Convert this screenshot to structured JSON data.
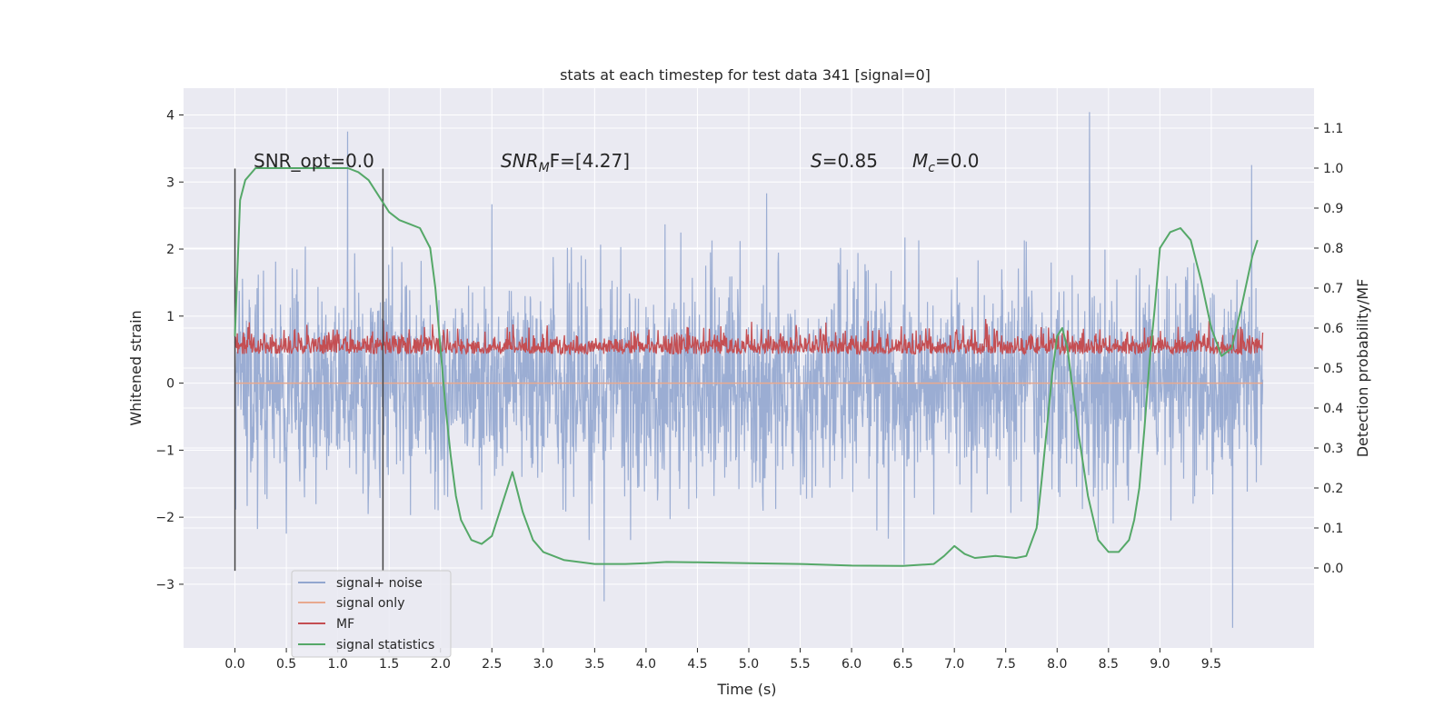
{
  "chart_data": {
    "type": "line",
    "title": "stats at each timestep for test data 341 [signal=0]",
    "xlabel": "Time (s)",
    "ylabel_left": "Whitened strain",
    "ylabel_right": "Detection probability/MF",
    "xlim": [
      -0.5,
      10.5
    ],
    "ylim_left": [
      -3.95,
      4.4
    ],
    "ylim_right": [
      -0.2,
      1.2
    ],
    "xticks": [
      "0.0",
      "0.5",
      "1.0",
      "1.5",
      "2.0",
      "2.5",
      "3.0",
      "3.5",
      "4.0",
      "4.5",
      "5.0",
      "5.5",
      "6.0",
      "6.5",
      "7.0",
      "7.5",
      "8.0",
      "8.5",
      "9.0",
      "9.5"
    ],
    "yticks_left": [
      "−3",
      "−2",
      "−1",
      "0",
      "1",
      "2",
      "3",
      "4"
    ],
    "yticks_right": [
      "0.0",
      "0.1",
      "0.2",
      "0.3",
      "0.4",
      "0.5",
      "0.6",
      "0.7",
      "0.8",
      "0.9",
      "1.0",
      "1.1"
    ],
    "grid": true,
    "legend_position": "lower-left",
    "annotations": {
      "snr_opt": "SNR_opt=0.0",
      "snr_mf_prefix": "SNR",
      "snr_mf_sub": "M",
      "snr_mf_suffix": "F=[4.27]",
      "s_prefix": "S",
      "s_suffix": "=0.85",
      "mc_prefix": "M",
      "mc_sub": "c",
      "mc_suffix": "=0.0"
    },
    "vertical_lines_x": [
      0.0,
      1.44
    ],
    "series": [
      {
        "name": "signal+ noise",
        "color": "#92a6cf",
        "axis": "left",
        "x_range": [
          0.0,
          10.0
        ],
        "approx_std": 0.75
      },
      {
        "name": "signal only",
        "color": "#e8a98f",
        "axis": "left",
        "constant": 0.0
      },
      {
        "name": "MF",
        "color": "#c44e52",
        "axis": "right",
        "x_range": [
          0.0,
          10.0
        ],
        "approx_range": [
          0.5,
          0.63
        ]
      },
      {
        "name": "signal statistics",
        "color": "#55a868",
        "axis": "right",
        "x": [
          0.0,
          0.05,
          0.1,
          0.2,
          0.3,
          0.5,
          0.8,
          1.0,
          1.1,
          1.2,
          1.3,
          1.4,
          1.5,
          1.6,
          1.7,
          1.8,
          1.9,
          1.95,
          2.0,
          2.05,
          2.1,
          2.15,
          2.2,
          2.3,
          2.4,
          2.5,
          2.6,
          2.7,
          2.8,
          2.9,
          3.0,
          3.2,
          3.5,
          3.8,
          4.0,
          4.2,
          4.5,
          5.0,
          5.5,
          6.0,
          6.5,
          6.8,
          6.9,
          7.0,
          7.1,
          7.2,
          7.4,
          7.6,
          7.7,
          7.8,
          7.85,
          7.9,
          7.95,
          8.0,
          8.05,
          8.1,
          8.15,
          8.2,
          8.3,
          8.4,
          8.5,
          8.6,
          8.7,
          8.75,
          8.8,
          8.85,
          8.9,
          8.95,
          9.0,
          9.1,
          9.2,
          9.3,
          9.4,
          9.5,
          9.6,
          9.7,
          9.8,
          9.9,
          9.95
        ],
        "y": [
          0.58,
          0.92,
          0.97,
          1.0,
          1.0,
          1.0,
          1.0,
          1.0,
          1.0,
          0.99,
          0.97,
          0.93,
          0.89,
          0.87,
          0.86,
          0.85,
          0.8,
          0.7,
          0.55,
          0.4,
          0.28,
          0.18,
          0.12,
          0.07,
          0.06,
          0.08,
          0.16,
          0.24,
          0.14,
          0.07,
          0.04,
          0.02,
          0.01,
          0.01,
          0.012,
          0.015,
          0.014,
          0.012,
          0.01,
          0.006,
          0.005,
          0.01,
          0.03,
          0.055,
          0.035,
          0.025,
          0.03,
          0.025,
          0.03,
          0.1,
          0.22,
          0.35,
          0.48,
          0.58,
          0.6,
          0.55,
          0.45,
          0.35,
          0.18,
          0.07,
          0.04,
          0.04,
          0.07,
          0.12,
          0.2,
          0.35,
          0.52,
          0.65,
          0.8,
          0.84,
          0.85,
          0.82,
          0.72,
          0.6,
          0.53,
          0.55,
          0.66,
          0.78,
          0.82
        ]
      }
    ]
  }
}
